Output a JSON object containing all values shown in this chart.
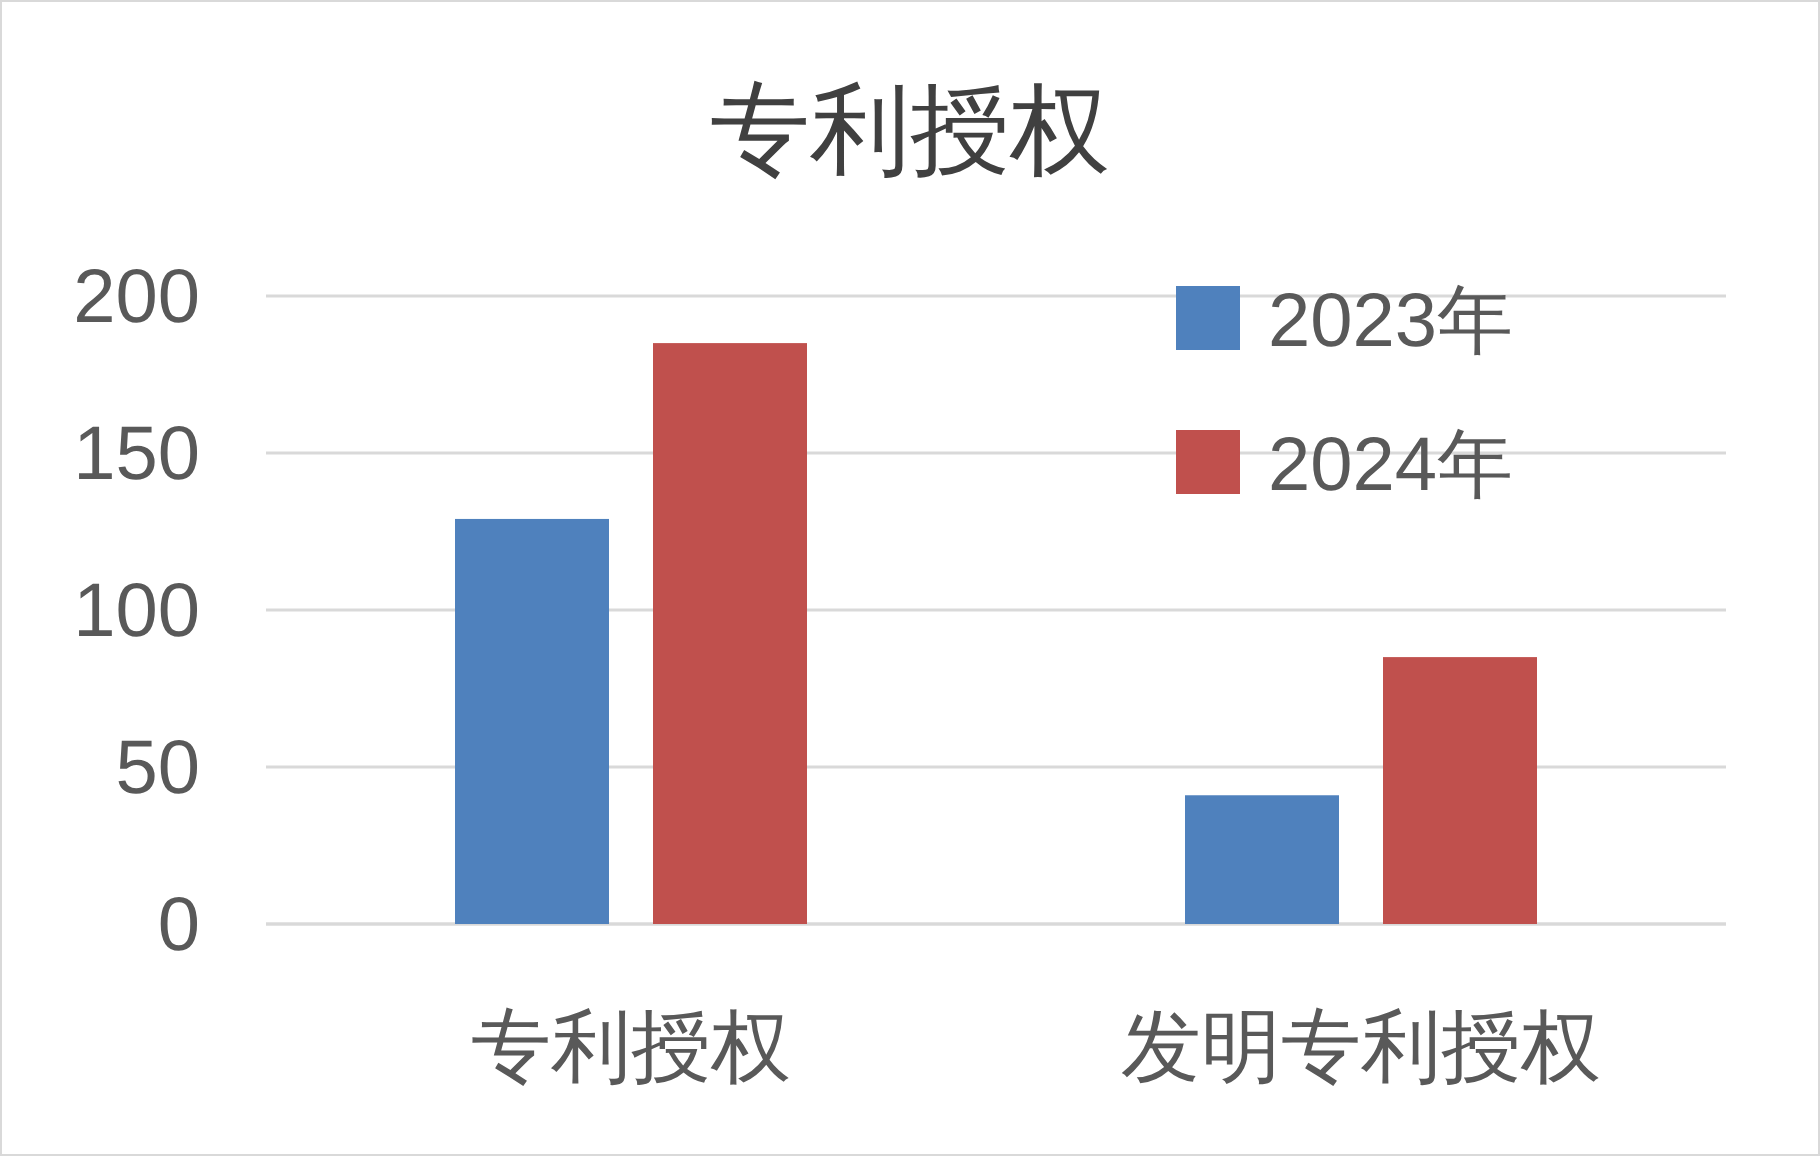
{
  "chart_data": {
    "type": "bar",
    "title": "专利授权",
    "categories": [
      "专利授权",
      "发明专利授权"
    ],
    "series": [
      {
        "name": "2023年",
        "color": "#4f81bd",
        "values": [
          129,
          41
        ]
      },
      {
        "name": "2024年",
        "color": "#c0504d",
        "values": [
          185,
          85
        ]
      }
    ],
    "ylim": [
      0,
      200
    ],
    "yticks": [
      0,
      50,
      100,
      150,
      200
    ],
    "grid": "y",
    "legend": "top right"
  }
}
